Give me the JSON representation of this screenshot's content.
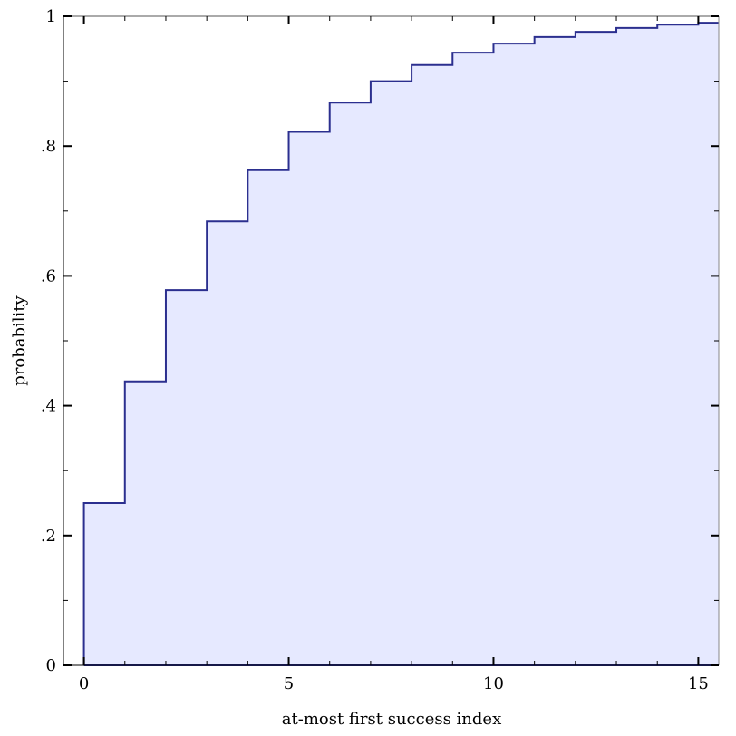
{
  "chart_data": {
    "type": "area",
    "title": "",
    "xlabel": "at-most first success index",
    "ylabel": "probability",
    "xlim": [
      -0.5,
      15.5
    ],
    "ylim": [
      0,
      1
    ],
    "grid": false,
    "legend": "none",
    "x_ticks": [
      {
        "value": 0,
        "label": "0"
      },
      {
        "value": 5,
        "label": "5"
      },
      {
        "value": 10,
        "label": "10"
      },
      {
        "value": 15,
        "label": "15"
      }
    ],
    "y_ticks": [
      {
        "value": 0,
        "label": "0"
      },
      {
        "value": 0.2,
        "label": ".2"
      },
      {
        "value": 0.4,
        "label": ".4"
      },
      {
        "value": 0.6,
        "label": ".6"
      },
      {
        "value": 0.8,
        "label": ".8"
      },
      {
        "value": 1,
        "label": "1"
      }
    ],
    "x_minor_step": 1,
    "y_minor_step": 0.1,
    "series": [
      {
        "step": "post",
        "x": [
          0,
          1,
          2,
          3,
          4,
          5,
          6,
          7,
          8,
          9,
          10,
          11,
          12,
          13,
          14,
          15
        ],
        "values": [
          0.25,
          0.4375,
          0.578,
          0.684,
          0.763,
          0.822,
          0.867,
          0.9,
          0.925,
          0.944,
          0.958,
          0.968,
          0.976,
          0.982,
          0.987,
          0.99
        ]
      }
    ],
    "colors": {
      "line": "#2b2f8f",
      "fill": "#e6e9ff",
      "axis": "#000000",
      "baseline": "#2b2f8f"
    }
  }
}
